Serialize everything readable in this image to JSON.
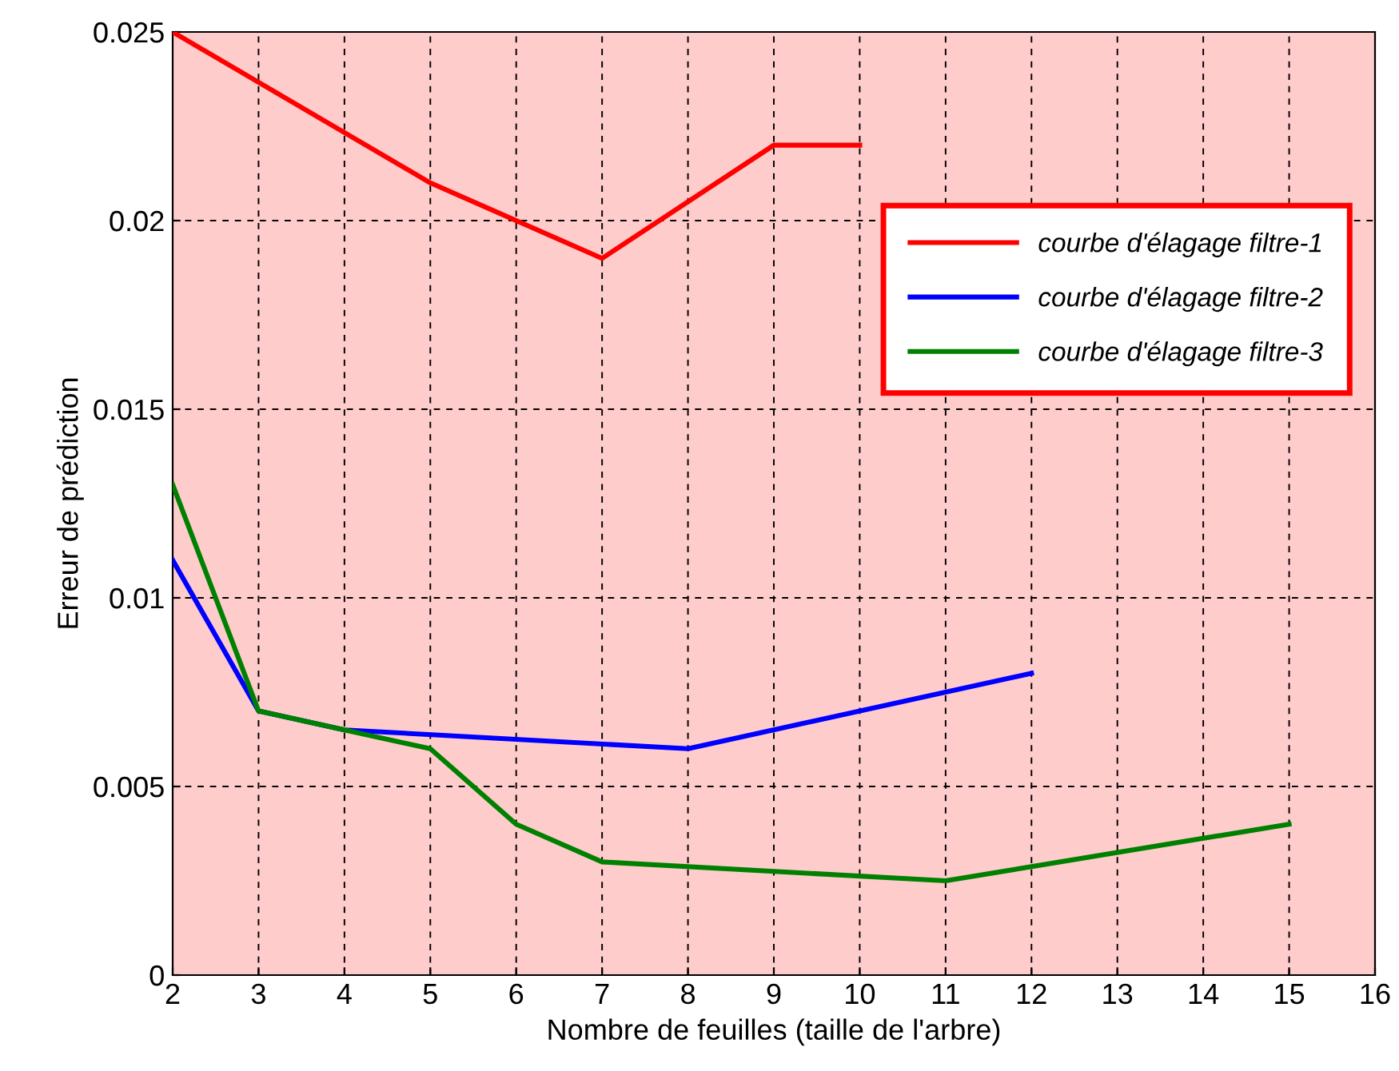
{
  "chart_data": {
    "type": "line",
    "xlabel": "Nombre de feuilles (taille de l'arbre)",
    "ylabel": "Erreur de prédiction",
    "xlim": [
      2,
      16
    ],
    "xticks": [
      2,
      3,
      4,
      5,
      6,
      7,
      8,
      9,
      10,
      11,
      12,
      13,
      14,
      15,
      16
    ],
    "ylim": [
      0,
      0.025
    ],
    "yticks": [
      0,
      0.005,
      0.01,
      0.015,
      0.02,
      0.025
    ],
    "grid": true,
    "legend": "top right",
    "line_style": "solid",
    "marker": "none",
    "series": [
      {
        "name": "courbe d'élagage filtre-1",
        "color": "#ff0000",
        "x": [
          2,
          5,
          7,
          9,
          10
        ],
        "values": [
          0.025,
          0.021,
          0.019,
          0.022,
          0.022
        ]
      },
      {
        "name": "courbe d'élagage filtre-2",
        "color": "#0000ff",
        "x": [
          2,
          3,
          4,
          8,
          12
        ],
        "values": [
          0.011,
          0.007,
          0.0065,
          0.006,
          0.008
        ]
      },
      {
        "name": "courbe d'élagage filtre-3",
        "color": "#008000",
        "x": [
          2,
          3,
          4,
          5,
          6,
          7,
          11,
          15
        ],
        "values": [
          0.013,
          0.007,
          0.0065,
          0.006,
          0.004,
          0.003,
          0.0025,
          0.004
        ]
      }
    ]
  }
}
